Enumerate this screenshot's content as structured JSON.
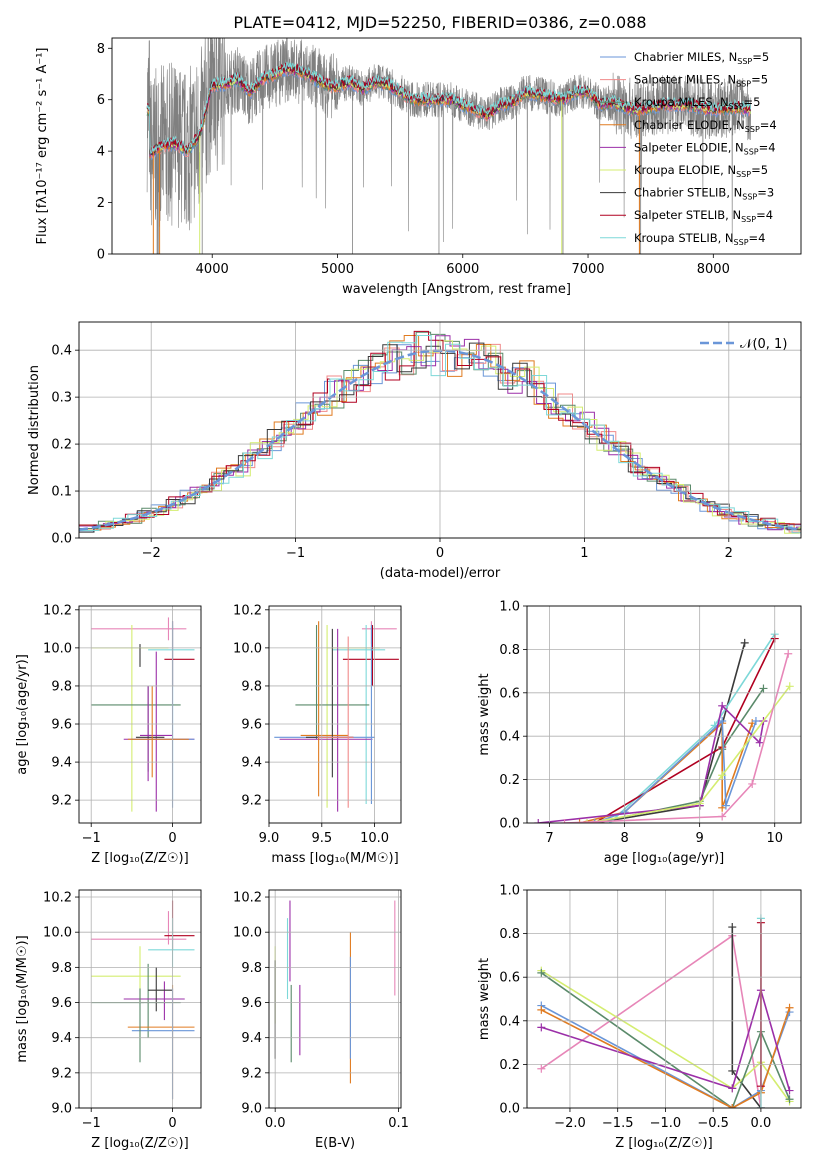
{
  "title": "PLATE=0412, MJD=52250, FIBERID=0386, z=0.088",
  "colors": {
    "c1": "#6a96d8",
    "c2": "#f08a8a",
    "c3": "#5a8a6a",
    "c4": "#e07b20",
    "c5": "#9b2fa8",
    "c6": "#d4ed70",
    "c7": "#3a3a3a",
    "c8": "#b00020",
    "c9": "#7dd8d8",
    "pink": "#e786b8",
    "gray": "#808080"
  },
  "chart_data": [
    {
      "id": "spectrum",
      "type": "line",
      "xlabel": "wavelength [Angstrom, rest frame]",
      "ylabel": "Flux [fλ10⁻¹⁷ erg cm⁻² s⁻¹ A⁻¹]",
      "xlim": [
        3200,
        8700
      ],
      "ylim": [
        0,
        8.4
      ],
      "xticks": [
        "4000",
        "5000",
        "6000",
        "7000",
        "8000"
      ],
      "yticks": [
        "0",
        "2",
        "4",
        "6",
        "8"
      ],
      "legend_position": "top-right",
      "legend": [
        {
          "label": "Chabrier MILES, N",
          "sub": "SSP",
          "value": "=5",
          "color": "c1"
        },
        {
          "label": "Salpeter MILES, N",
          "sub": "SSP",
          "value": "=5",
          "color": "c2"
        },
        {
          "label": "Kroupa MILES, N",
          "sub": "SSP",
          "value": "=5",
          "color": "c3"
        },
        {
          "label": "Chabrier ELODIE, N",
          "sub": "SSP",
          "value": "=4",
          "color": "c4"
        },
        {
          "label": "Salpeter ELODIE, N",
          "sub": "SSP",
          "value": "=4",
          "color": "c5"
        },
        {
          "label": "Kroupa ELODIE, N",
          "sub": "SSP",
          "value": "=5",
          "color": "c6"
        },
        {
          "label": "Chabrier STELIB, N",
          "sub": "SSP",
          "value": "=3",
          "color": "c7"
        },
        {
          "label": "Salpeter STELIB, N",
          "sub": "SSP",
          "value": "=4",
          "color": "c8"
        },
        {
          "label": "Kroupa STELIB, N",
          "sub": "SSP",
          "value": "=4",
          "color": "c9"
        }
      ],
      "continuum": [
        [
          3500,
          3.9
        ],
        [
          3600,
          4.2
        ],
        [
          3700,
          4.3
        ],
        [
          3800,
          4.0
        ],
        [
          3900,
          4.6
        ],
        [
          4000,
          6.6
        ],
        [
          4100,
          6.6
        ],
        [
          4200,
          6.8
        ],
        [
          4300,
          6.3
        ],
        [
          4400,
          6.8
        ],
        [
          4500,
          7.0
        ],
        [
          4600,
          7.2
        ],
        [
          4700,
          7.1
        ],
        [
          4800,
          6.9
        ],
        [
          4900,
          6.6
        ],
        [
          5000,
          6.5
        ],
        [
          5100,
          6.7
        ],
        [
          5200,
          6.4
        ],
        [
          5300,
          6.7
        ],
        [
          5400,
          6.6
        ],
        [
          5500,
          6.3
        ],
        [
          5600,
          6.0
        ],
        [
          5700,
          6.0
        ],
        [
          5800,
          6.0
        ],
        [
          5900,
          6.0
        ],
        [
          6000,
          5.8
        ],
        [
          6100,
          5.6
        ],
        [
          6200,
          5.4
        ],
        [
          6300,
          5.8
        ],
        [
          6400,
          5.9
        ],
        [
          6500,
          6.3
        ],
        [
          6600,
          6.2
        ],
        [
          6700,
          6.1
        ],
        [
          6800,
          6.0
        ],
        [
          6900,
          6.3
        ],
        [
          7000,
          6.3
        ],
        [
          7100,
          5.8
        ],
        [
          7200,
          5.9
        ],
        [
          7300,
          5.7
        ],
        [
          7400,
          5.6
        ],
        [
          7600,
          5.8
        ],
        [
          7800,
          5.8
        ],
        [
          8000,
          5.6
        ],
        [
          8200,
          5.7
        ],
        [
          8300,
          5.6
        ]
      ]
    },
    {
      "id": "residuals",
      "type": "line",
      "xlabel": "(data-model)/error",
      "ylabel": "Normed distribution",
      "xlim": [
        -2.5,
        2.5
      ],
      "ylim": [
        0,
        0.46
      ],
      "xticks": [
        "−2",
        "−1",
        "0",
        "1",
        "2"
      ],
      "yticks": [
        "0.0",
        "0.1",
        "0.2",
        "0.3",
        "0.4"
      ],
      "legend_position": "top-right",
      "gauss_label": "𝒩(0, 1)",
      "gauss_color": "c1"
    },
    {
      "id": "age-vs-Z",
      "type": "scatter",
      "xlabel": "Z [log₁₀(Z/Z☉)]",
      "ylabel": "age  [log₁₀(age/yr)]",
      "xlim": [
        -1.15,
        0.35
      ],
      "ylim": [
        9.08,
        10.22
      ],
      "xticks": [
        "−1",
        "0"
      ],
      "yticks": [
        "9.2",
        "9.4",
        "9.6",
        "9.8",
        "10.0",
        "10.2"
      ]
    },
    {
      "id": "age-vs-mass",
      "type": "scatter",
      "xlabel": "mass [log₁₀(M/M☉)]",
      "ylabel": "",
      "xlim": [
        9.0,
        10.25
      ],
      "ylim": [
        9.08,
        10.22
      ],
      "xticks": [
        "9.0",
        "9.5",
        "10.0"
      ],
      "yticks": [
        "9.2",
        "9.4",
        "9.6",
        "9.8",
        "10.0",
        "10.2"
      ]
    },
    {
      "id": "weight-vs-age",
      "type": "line",
      "xlabel": "age  [log₁₀(age/yr)]",
      "ylabel": "mass weight",
      "xlim": [
        6.7,
        10.35
      ],
      "ylim": [
        0,
        1.0
      ],
      "xticks": [
        "7",
        "8",
        "9",
        "10"
      ],
      "yticks": [
        "0.0",
        "0.2",
        "0.4",
        "0.6",
        "0.8",
        "1.0"
      ]
    },
    {
      "id": "mass-vs-Z",
      "type": "scatter",
      "xlabel": "Z [log₁₀(Z/Z☉)]",
      "ylabel": "mass [log₁₀(M/M☉)]",
      "xlim": [
        -1.15,
        0.35
      ],
      "ylim": [
        9.0,
        10.24
      ],
      "xticks": [
        "−1",
        "0"
      ],
      "yticks": [
        "9.0",
        "9.2",
        "9.4",
        "9.6",
        "9.8",
        "10.0",
        "10.2"
      ]
    },
    {
      "id": "mass-vs-ebv",
      "type": "scatter",
      "xlabel": "E(B-V)",
      "ylabel": "",
      "xlim": [
        -0.005,
        0.102
      ],
      "ylim": [
        9.0,
        10.24
      ],
      "xticks": [
        "0.0",
        "0.1"
      ],
      "yticks": [
        "9.0",
        "9.2",
        "9.4",
        "9.6",
        "9.8",
        "10.0",
        "10.2"
      ]
    },
    {
      "id": "weight-vs-Z",
      "type": "line",
      "xlabel": "Z [log₁₀(Z/Z☉)]",
      "ylabel": "mass weight",
      "xlim": [
        -2.45,
        0.42
      ],
      "ylim": [
        0,
        1.0
      ],
      "xticks": [
        "−2.0",
        "−1.5",
        "−1.0",
        "−0.5",
        "0.0"
      ],
      "yticks": [
        "0.0",
        "0.2",
        "0.4",
        "0.6",
        "0.8",
        "1.0"
      ]
    }
  ]
}
